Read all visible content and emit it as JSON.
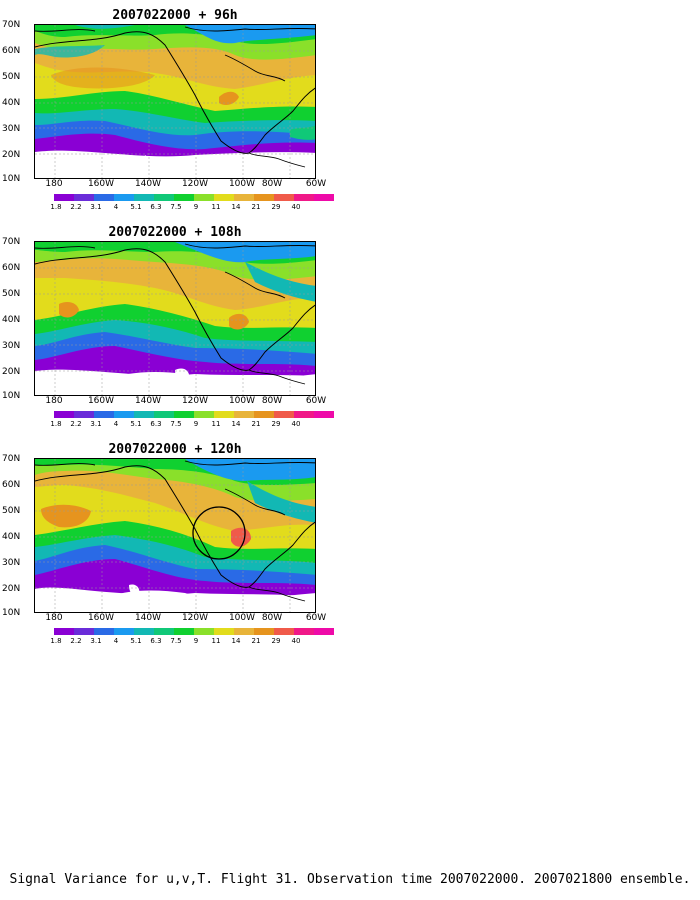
{
  "panels": [
    {
      "title": "2007022000 + 96h",
      "circle": false
    },
    {
      "title": "2007022000 + 108h",
      "circle": false
    },
    {
      "title": "2007022000 + 120h",
      "circle": true
    }
  ],
  "lat_labels": [
    "70N",
    "60N",
    "50N",
    "40N",
    "30N",
    "20N",
    "10N"
  ],
  "lon_labels": [
    "180",
    "160W",
    "140W",
    "120W",
    "100W",
    "80W",
    "60W"
  ],
  "colorbar": {
    "labels": [
      "1.8",
      "2.2",
      "3.1",
      "4",
      "5.1",
      "6.3",
      "7.5",
      "9",
      "11",
      "14",
      "21",
      "29",
      "40"
    ],
    "colors": [
      "#8a00d4",
      "#6a2cd9",
      "#2a6ae6",
      "#1a9af0",
      "#12b8b4",
      "#10c878",
      "#10d030",
      "#8ae02a",
      "#e2dc1c",
      "#e8b43a",
      "#e6941e",
      "#f05a4a",
      "#f01888",
      "#ee0aa8"
    ]
  },
  "caption": "Signal Variance for u,v,T. Flight 31. Observation time 2007022000. 2007021800 ensemble."
}
